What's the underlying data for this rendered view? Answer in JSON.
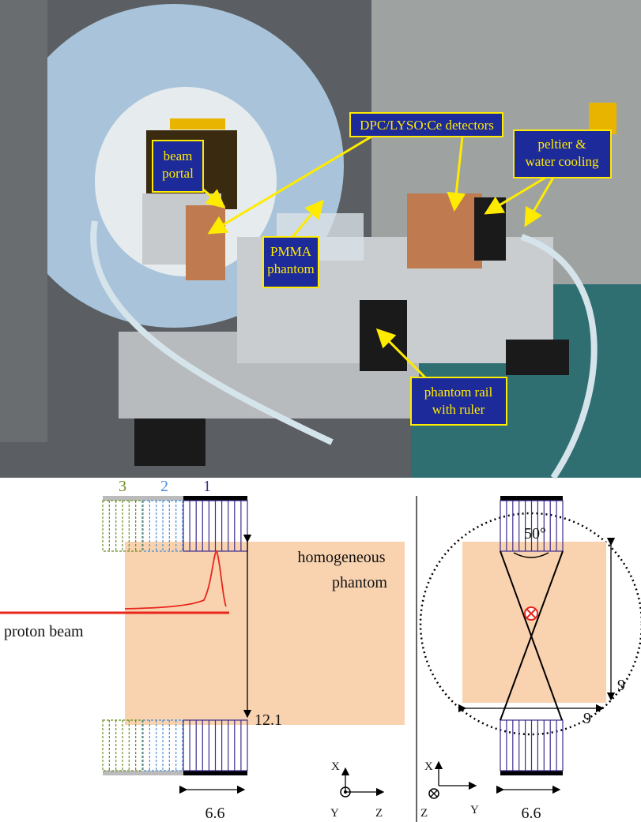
{
  "photo": {
    "labels": [
      {
        "lines": [
          "beam",
          "portal"
        ]
      },
      {
        "lines": [
          "DPC/LYSO:Ce detectors"
        ]
      },
      {
        "lines": [
          "peltier &",
          "water cooling"
        ]
      },
      {
        "lines": [
          "PMMA",
          "phantom"
        ]
      },
      {
        "lines": [
          "phantom rail",
          "with ruler"
        ]
      }
    ]
  },
  "diagram": {
    "left": {
      "detector_numbers": [
        "3",
        "2",
        "1"
      ],
      "phantom_lines": [
        "homogeneous",
        "phantom"
      ],
      "beam_label": "proton beam",
      "distance": "12.1",
      "width": "6.6",
      "axes": [
        "X",
        "Y",
        "Z"
      ]
    },
    "right": {
      "angle": "50°",
      "height": "9",
      "depth": "9",
      "width": "6.6",
      "axes": [
        "X",
        "Z",
        "Y"
      ]
    }
  }
}
